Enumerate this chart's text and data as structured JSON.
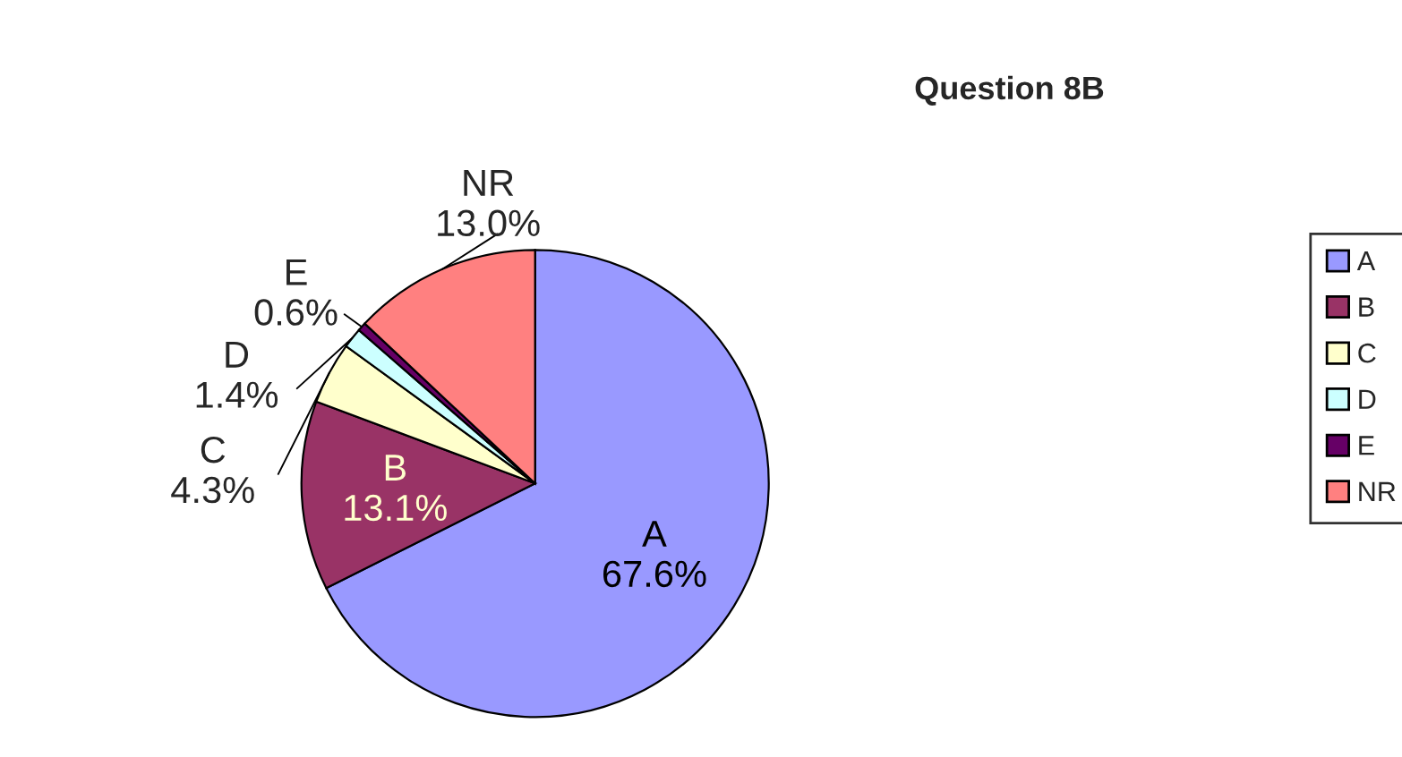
{
  "chart_data": {
    "type": "pie",
    "title": "Question 8B",
    "categories": [
      "A",
      "B",
      "C",
      "D",
      "E",
      "NR"
    ],
    "values": [
      67.6,
      13.1,
      4.3,
      1.4,
      0.6,
      13.0
    ],
    "value_labels": [
      "67.6%",
      "13.1%",
      "4.3%",
      "1.4%",
      "0.6%",
      "13.0%"
    ],
    "colors": [
      "#9999ff",
      "#993366",
      "#ffffcc",
      "#ccffff",
      "#660066",
      "#ff8080"
    ],
    "legend": "right"
  }
}
